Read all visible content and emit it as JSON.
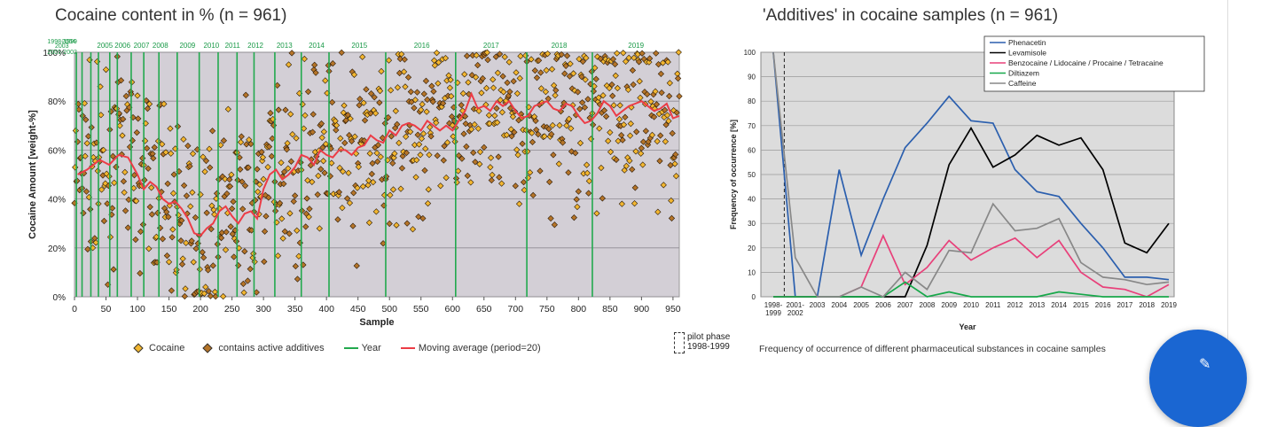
{
  "left_title": "Cocaine content in % (n = 961)",
  "right_title": "'Additives' in cocaine samples (n = 961)",
  "left_legend": {
    "cocaine": "Cocaine",
    "additives": "contains active additives",
    "year": "Year",
    "moving_avg": "Moving average (period=20)"
  },
  "pilot_note": {
    "line1": "pilot phase",
    "line2": "1998-1999"
  },
  "right_caption": "Frequency of occurrence of different pharmaceutical substances in cocaine samples",
  "colors": {
    "plot_bg": "#d3cfd6",
    "cocaine_dot": "#f2b630",
    "additive_dot": "#b57428",
    "year_line": "#22a94e",
    "moving_avg": "#ec3c46",
    "phenacetin": "#2b5fae",
    "levamisole": "#000000",
    "benzocaine": "#e8407a",
    "diltiazem": "#17a84a",
    "caffeine": "#888888",
    "fab": "#1a66d2"
  },
  "chart_data": [
    {
      "type": "scatter",
      "xlabel": "Sample",
      "ylabel": "Cocaine Amount [weight-%]",
      "xlim": [
        0,
        960
      ],
      "ylim": [
        0,
        100
      ],
      "x_ticks": [
        "0",
        "50",
        "100",
        "150",
        "200",
        "250",
        "300",
        "350",
        "400",
        "450",
        "500",
        "550",
        "600",
        "650",
        "700",
        "750",
        "800",
        "850",
        "900",
        "950"
      ],
      "y_ticks": [
        "0%",
        "20%",
        "40%",
        "60%",
        "80%",
        "100%"
      ],
      "year_markers": [
        {
          "label": "1998-1999",
          "x": 2,
          "row": 0
        },
        {
          "label": "2001-2002",
          "x": 8,
          "row": 1
        },
        {
          "label": "2003",
          "x": 17,
          "row": 1
        },
        {
          "label": "2004",
          "x": 29,
          "row": 0
        },
        {
          "label": "2005",
          "x": 48,
          "row": 1
        },
        {
          "label": "2006",
          "x": 68,
          "row": 1
        },
        {
          "label": "2007",
          "x": 90,
          "row": 1
        },
        {
          "label": "2008",
          "x": 110,
          "row": 1
        },
        {
          "label": "2009",
          "x": 134,
          "row": 1
        },
        {
          "label": "2010",
          "x": 170,
          "row": 1
        },
        {
          "label": "2011",
          "x": 198,
          "row": 1
        },
        {
          "label": "2012",
          "x": 228,
          "row": 1
        },
        {
          "label": "2013",
          "x": 258,
          "row": 1
        },
        {
          "label": "2014",
          "x": 285,
          "row": 1
        },
        {
          "label": "2015",
          "x": 318,
          "row": 1
        },
        {
          "label": "2016",
          "x": 360,
          "row": 1
        },
        {
          "label": "2017",
          "x": 404,
          "row": 1
        },
        {
          "label": "2018",
          "x": 494,
          "row": 1
        },
        {
          "label": "2019",
          "x": 605,
          "row": 1
        }
      ],
      "year_lines": [
        3,
        12,
        26,
        38,
        56,
        68,
        90,
        110,
        134,
        163,
        198,
        228,
        258,
        285,
        318,
        360,
        404,
        494,
        605,
        718,
        822
      ],
      "year_label_positions": [
        {
          "label": "1998-1999",
          "x": 2,
          "row": 0
        },
        {
          "label": "2004",
          "x": 25,
          "row": 0
        },
        {
          "label": "2003",
          "x": 14,
          "row": 1
        },
        {
          "label": "2001-2002",
          "x": 2,
          "row": 2
        },
        {
          "label": "2005",
          "x": 47,
          "row": 1
        },
        {
          "label": "2006",
          "x": 75,
          "row": 1
        },
        {
          "label": "2007",
          "x": 105,
          "row": 1
        },
        {
          "label": "2008",
          "x": 135,
          "row": 1
        },
        {
          "label": "2009",
          "x": 178,
          "row": 1
        },
        {
          "label": "2010",
          "x": 216,
          "row": 1
        },
        {
          "label": "2011",
          "x": 250,
          "row": 1
        },
        {
          "label": "2012",
          "x": 286,
          "row": 1
        },
        {
          "label": "2013",
          "x": 332,
          "row": 1
        },
        {
          "label": "2014",
          "x": 383,
          "row": 1
        },
        {
          "label": "2015",
          "x": 451,
          "row": 1
        },
        {
          "label": "2016",
          "x": 550,
          "row": 1
        },
        {
          "label": "2017",
          "x": 660,
          "row": 1
        },
        {
          "label": "2018",
          "x": 768,
          "row": 1
        },
        {
          "label": "2019",
          "x": 890,
          "row": 1
        }
      ],
      "moving_average": [
        [
          5,
          50
        ],
        [
          20,
          52
        ],
        [
          40,
          56
        ],
        [
          55,
          54
        ],
        [
          70,
          58
        ],
        [
          85,
          57
        ],
        [
          100,
          50
        ],
        [
          110,
          44
        ],
        [
          120,
          47
        ],
        [
          130,
          45
        ],
        [
          140,
          40
        ],
        [
          150,
          38
        ],
        [
          160,
          39
        ],
        [
          170,
          36
        ],
        [
          180,
          32
        ],
        [
          190,
          26
        ],
        [
          200,
          25
        ],
        [
          210,
          28
        ],
        [
          220,
          30
        ],
        [
          230,
          35
        ],
        [
          240,
          37
        ],
        [
          250,
          33
        ],
        [
          260,
          30
        ],
        [
          270,
          34
        ],
        [
          280,
          35
        ],
        [
          290,
          32
        ],
        [
          300,
          44
        ],
        [
          310,
          50
        ],
        [
          320,
          52
        ],
        [
          330,
          48
        ],
        [
          340,
          50
        ],
        [
          350,
          53
        ],
        [
          360,
          58
        ],
        [
          370,
          57
        ],
        [
          380,
          54
        ],
        [
          390,
          60
        ],
        [
          400,
          58
        ],
        [
          410,
          57
        ],
        [
          420,
          60
        ],
        [
          430,
          60
        ],
        [
          440,
          58
        ],
        [
          450,
          61
        ],
        [
          460,
          62
        ],
        [
          470,
          66
        ],
        [
          480,
          64
        ],
        [
          490,
          63
        ],
        [
          500,
          68
        ],
        [
          510,
          66
        ],
        [
          520,
          70
        ],
        [
          530,
          71
        ],
        [
          540,
          70
        ],
        [
          550,
          68
        ],
        [
          560,
          72
        ],
        [
          570,
          70
        ],
        [
          580,
          68
        ],
        [
          590,
          70
        ],
        [
          600,
          68
        ],
        [
          610,
          72
        ],
        [
          620,
          76
        ],
        [
          630,
          83
        ],
        [
          640,
          77
        ],
        [
          650,
          78
        ],
        [
          660,
          76
        ],
        [
          670,
          80
        ],
        [
          680,
          78
        ],
        [
          690,
          80
        ],
        [
          700,
          76
        ],
        [
          710,
          73
        ],
        [
          720,
          74
        ],
        [
          730,
          78
        ],
        [
          740,
          79
        ],
        [
          750,
          80
        ],
        [
          760,
          77
        ],
        [
          770,
          76
        ],
        [
          780,
          79
        ],
        [
          790,
          78
        ],
        [
          800,
          74
        ],
        [
          810,
          71
        ],
        [
          820,
          72
        ],
        [
          830,
          75
        ],
        [
          840,
          80
        ],
        [
          850,
          78
        ],
        [
          860,
          74
        ],
        [
          870,
          76
        ],
        [
          880,
          78
        ],
        [
          890,
          79
        ],
        [
          900,
          80
        ],
        [
          910,
          78
        ],
        [
          920,
          76
        ],
        [
          930,
          77
        ],
        [
          940,
          79
        ],
        [
          950,
          73
        ],
        [
          960,
          74
        ]
      ]
    },
    {
      "type": "line",
      "xlabel": "Year",
      "ylabel": "Frequency of occurrence [%]",
      "ylim": [
        0,
        100
      ],
      "y_ticks": [
        "0",
        "10",
        "20",
        "30",
        "40",
        "50",
        "60",
        "70",
        "80",
        "90",
        "100"
      ],
      "categories": [
        "1998-1999",
        "2001-2002",
        "2003",
        "2004",
        "2005",
        "2006",
        "2007",
        "2008",
        "2009",
        "2010",
        "2011",
        "2012",
        "2013",
        "2014",
        "2015",
        "2016",
        "2017",
        "2018",
        "2019"
      ],
      "x_tick_top": [
        "1998-",
        "2001-",
        "2003",
        "2004",
        "2005",
        "2006",
        "2007",
        "2008",
        "2009",
        "2010",
        "2011",
        "2012",
        "2013",
        "2014",
        "2015",
        "2016",
        "2017",
        "2018",
        "2019"
      ],
      "x_tick_bottom": [
        "1999",
        "2002",
        "",
        "",
        "",
        "",
        "",
        "",
        "",
        "",
        "",
        "",
        "",
        "",
        "",
        "",
        "",
        "",
        ""
      ],
      "series": [
        {
          "name": "Phenacetin",
          "color_key": "phenacetin",
          "values": [
            100,
            0,
            0,
            52,
            17,
            40,
            61,
            71,
            82,
            72,
            71,
            52,
            43,
            41,
            30,
            20,
            8,
            8,
            7
          ]
        },
        {
          "name": "Levamisole",
          "color_key": "levamisole",
          "values": [
            0,
            0,
            0,
            0,
            0,
            0,
            0,
            21,
            54,
            69,
            53,
            58,
            66,
            62,
            65,
            52,
            22,
            18,
            30
          ]
        },
        {
          "name": "Benzocaine / Lidocaine / Procaine / Tetracaine",
          "color_key": "benzocaine",
          "values": [
            0,
            0,
            0,
            0,
            4,
            25,
            5,
            12,
            23,
            15,
            20,
            24,
            16,
            23,
            10,
            4,
            3,
            0,
            5
          ]
        },
        {
          "name": "Diltiazem",
          "color_key": "diltiazem",
          "values": [
            0,
            0,
            0,
            0,
            0,
            0,
            6,
            0,
            2,
            0,
            0,
            0,
            0,
            2,
            1,
            0,
            0,
            0,
            0
          ]
        },
        {
          "name": "Caffeine",
          "color_key": "caffeine",
          "values": [
            100,
            16,
            0,
            0,
            4,
            0,
            10,
            3,
            19,
            18,
            38,
            27,
            28,
            32,
            14,
            8,
            7,
            5,
            6
          ]
        }
      ]
    }
  ]
}
